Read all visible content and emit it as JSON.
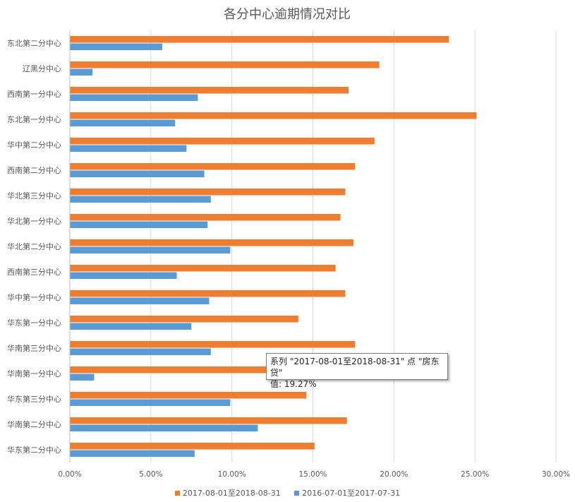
{
  "chart_data": {
    "type": "bar",
    "orientation": "horizontal",
    "title": "各分中心逾期情况对比",
    "categories": [
      "东北第二分中心",
      "辽黑分中心",
      "西南第一分中心",
      "东北第一分中心",
      "华中第二分中心",
      "西南第二分中心",
      "华北第三分中心",
      "华北第一分中心",
      "华北第二分中心",
      "西南第三分中心",
      "华中第一分中心",
      "华东第一分中心",
      "华南第三分中心",
      "华南第一分中心",
      "华东第三分中心",
      "华南第二分中心",
      "华东第二分中心"
    ],
    "series": [
      {
        "name": "2017-08-01至2018-08-31",
        "color": "#ed7d31",
        "values": [
          0.234,
          0.191,
          0.172,
          0.251,
          0.188,
          0.176,
          0.17,
          0.167,
          0.175,
          0.164,
          0.17,
          0.141,
          0.176,
          0.1927,
          0.146,
          0.171,
          0.151
        ]
      },
      {
        "name": "2016-07-01至2017-07-31",
        "color": "#5b9bd5",
        "values": [
          0.057,
          0.014,
          0.079,
          0.065,
          0.072,
          0.083,
          0.087,
          0.085,
          0.099,
          0.066,
          0.086,
          0.075,
          0.087,
          0.015,
          0.099,
          0.116,
          0.077
        ]
      }
    ],
    "xlim": [
      0,
      0.3
    ],
    "xticks": [
      "0.00%",
      "5.00%",
      "10.00%",
      "15.00%",
      "20.00%",
      "25.00%",
      "30.00%"
    ],
    "grid": true,
    "legend_position": "bottom"
  },
  "tooltip": {
    "line1": "系列 \"2017-08-01至2018-08-31\" 点 \"房东贷\"",
    "line2": "值: 19.27%"
  }
}
